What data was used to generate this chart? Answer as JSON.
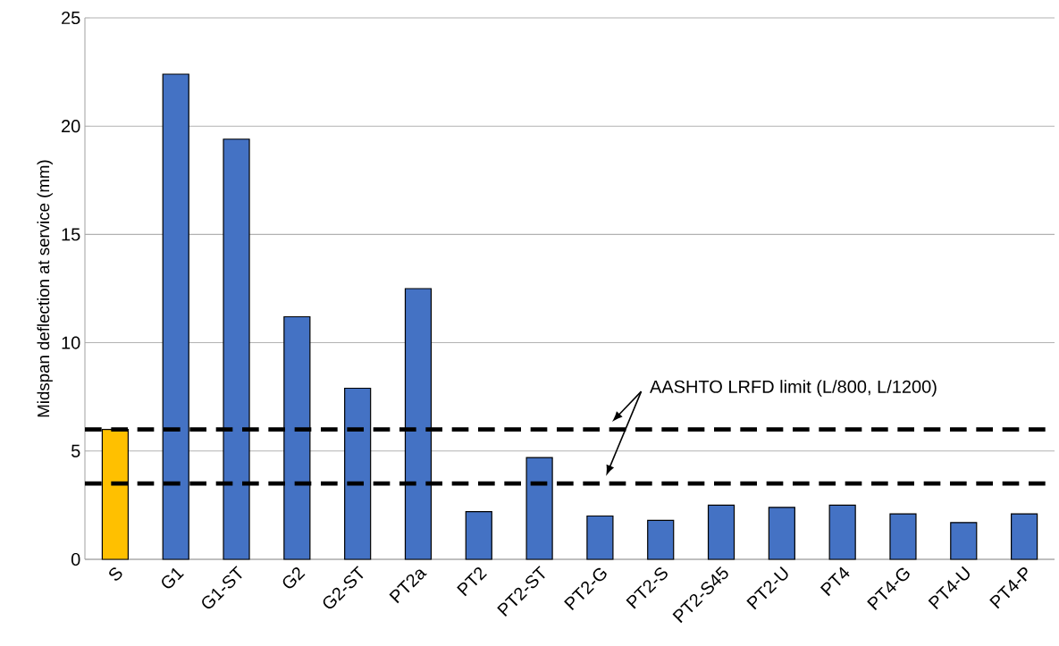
{
  "chart_data": {
    "type": "bar",
    "ylabel": "Midspan deflection at service (mm)",
    "categories": [
      "S",
      "G1",
      "G1-ST",
      "G2",
      "G2-ST",
      "PT2a",
      "PT2",
      "PT2-ST",
      "PT2-G",
      "PT2-S",
      "PT2-S45",
      "PT2-U",
      "PT4",
      "PT4-G",
      "PT4-U",
      "PT4-P"
    ],
    "values": [
      6.0,
      22.4,
      19.4,
      11.2,
      7.9,
      12.5,
      2.2,
      4.7,
      2.0,
      1.8,
      2.5,
      2.4,
      2.5,
      2.1,
      1.7,
      2.1
    ],
    "colors": [
      "#ffc000",
      "#4472c4",
      "#4472c4",
      "#4472c4",
      "#4472c4",
      "#4472c4",
      "#4472c4",
      "#4472c4",
      "#4472c4",
      "#4472c4",
      "#4472c4",
      "#4472c4",
      "#4472c4",
      "#4472c4",
      "#4472c4",
      "#4472c4"
    ],
    "ylim": [
      0,
      25
    ],
    "yticks": [
      0,
      5,
      10,
      15,
      20,
      25
    ],
    "grid": "y",
    "ref_lines": [
      {
        "axis": "y",
        "value": 6.0,
        "color": "#000000",
        "line_style": "dashed"
      },
      {
        "axis": "y",
        "value": 3.5,
        "color": "#000000",
        "line_style": "dashed"
      }
    ],
    "annotations": [
      "AASHTO LRFD limit (L/800, L/1200)"
    ]
  }
}
